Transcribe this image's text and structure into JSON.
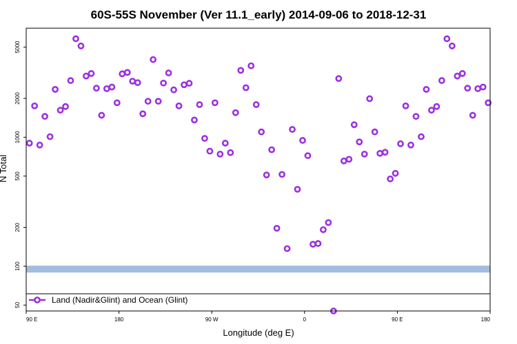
{
  "chart_data": {
    "type": "scatter",
    "title": "60S-55S November (Ver 11.1_early)   2014-09-06 to 2018-12-31",
    "xlabel": "Longitude (deg E)",
    "ylabel": "N Total",
    "y_scale": "log",
    "ylim": [
      45,
      7000
    ],
    "xlim": [
      90,
      450
    ],
    "x_ticks": [
      {
        "value": 90,
        "label": "90 E"
      },
      {
        "value": 162,
        "label": "180"
      },
      {
        "value": 234,
        "label": "90 W"
      },
      {
        "value": 306,
        "label": "0"
      },
      {
        "value": 378,
        "label": "90 E"
      },
      {
        "value": 450,
        "label": "180"
      }
    ],
    "y_ticks": [
      {
        "value": 50,
        "label": "50"
      },
      {
        "value": 100,
        "label": "100"
      },
      {
        "value": 200,
        "label": "200"
      },
      {
        "value": 500,
        "label": "500"
      },
      {
        "value": 1000,
        "label": "1000"
      },
      {
        "value": 2000,
        "label": "2000"
      },
      {
        "value": 5000,
        "label": "5000"
      }
    ],
    "threshold_band": {
      "value": 95,
      "color": "#a3bde0"
    },
    "legend": {
      "position": "bottom-left",
      "entries": [
        {
          "label": "Land (Nadir&Glint) and Ocean (Glint)",
          "color": "#9b30e0"
        }
      ]
    },
    "series": [
      {
        "color": "#9b30e0",
        "points": [
          [
            92.5,
            900
          ],
          [
            96.5,
            1750
          ],
          [
            100.5,
            870
          ],
          [
            104.5,
            1450
          ],
          [
            108.5,
            1010
          ],
          [
            112.5,
            2350
          ],
          [
            116.5,
            1620
          ],
          [
            120.5,
            1730
          ],
          [
            124.5,
            2750
          ],
          [
            128.5,
            5800
          ],
          [
            132.5,
            5100
          ],
          [
            136.5,
            2980
          ],
          [
            140.5,
            3120
          ],
          [
            144.5,
            2400
          ],
          [
            148.5,
            1480
          ],
          [
            152.5,
            2380
          ],
          [
            156.5,
            2450
          ],
          [
            160.5,
            1850
          ],
          [
            164.5,
            3100
          ],
          [
            168.5,
            3180
          ],
          [
            172.5,
            2720
          ],
          [
            176.5,
            2650
          ],
          [
            180.5,
            1520
          ],
          [
            184.5,
            1900
          ],
          [
            188.5,
            4000
          ],
          [
            192.5,
            1900
          ],
          [
            196.5,
            2630
          ],
          [
            200.5,
            3150
          ],
          [
            204.5,
            2330
          ],
          [
            208.5,
            1750
          ],
          [
            212.5,
            2550
          ],
          [
            216.5,
            2620
          ],
          [
            220.5,
            1360
          ],
          [
            224.5,
            1790
          ],
          [
            228.5,
            980
          ],
          [
            232.5,
            780
          ],
          [
            236.5,
            1850
          ],
          [
            240.5,
            740
          ],
          [
            244.5,
            900
          ],
          [
            248.5,
            760
          ],
          [
            252.5,
            1550
          ],
          [
            256.5,
            3300
          ],
          [
            260.5,
            2420
          ],
          [
            264.5,
            3580
          ],
          [
            268.5,
            1790
          ],
          [
            272.5,
            1100
          ],
          [
            276.5,
            510
          ],
          [
            280.5,
            800
          ],
          [
            284.5,
            197
          ],
          [
            288.5,
            515
          ],
          [
            292.5,
            137
          ],
          [
            296.5,
            1150
          ],
          [
            300.5,
            395
          ],
          [
            304.5,
            945
          ],
          [
            308.5,
            720
          ],
          [
            312.5,
            148
          ],
          [
            316.5,
            150
          ],
          [
            320.5,
            192
          ],
          [
            324.5,
            218
          ],
          [
            328.5,
            45
          ],
          [
            332.5,
            2850
          ],
          [
            336.5,
            655
          ],
          [
            340.5,
            675
          ],
          [
            344.5,
            1250
          ],
          [
            348.5,
            920
          ],
          [
            352.5,
            740
          ],
          [
            356.5,
            1990
          ],
          [
            360.5,
            1100
          ],
          [
            364.5,
            750
          ],
          [
            368.5,
            765
          ],
          [
            372.5,
            475
          ],
          [
            376.5,
            525
          ],
          [
            380.5,
            890
          ],
          [
            384.5,
            1750
          ],
          [
            388.5,
            870
          ],
          [
            392.5,
            1450
          ],
          [
            396.5,
            1010
          ],
          [
            400.5,
            2350
          ],
          [
            404.5,
            1620
          ],
          [
            408.5,
            1730
          ],
          [
            412.5,
            2750
          ],
          [
            416.5,
            5800
          ],
          [
            420.5,
            5100
          ],
          [
            424.5,
            2980
          ],
          [
            428.5,
            3120
          ],
          [
            432.5,
            2400
          ],
          [
            436.5,
            1480
          ],
          [
            440.5,
            2380
          ],
          [
            444.5,
            2450
          ],
          [
            448.5,
            1850
          ]
        ]
      }
    ]
  }
}
